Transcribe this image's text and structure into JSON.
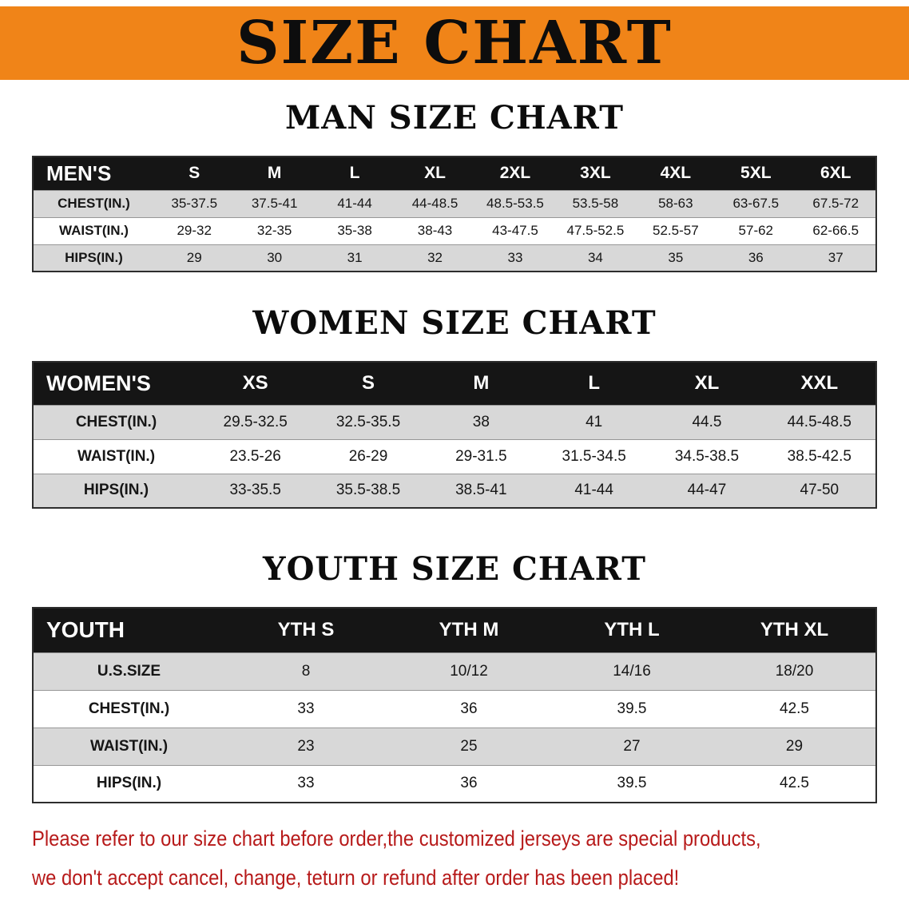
{
  "banner": {
    "title": "SIZE CHART"
  },
  "sections": [
    {
      "id": "men",
      "heading": "MAN SIZE CHART",
      "table": {
        "header": [
          "MEN'S",
          "S",
          "M",
          "L",
          "XL",
          "2XL",
          "3XL",
          "4XL",
          "5XL",
          "6XL"
        ],
        "rows": [
          [
            "CHEST(IN.)",
            "35-37.5",
            "37.5-41",
            "41-44",
            "44-48.5",
            "48.5-53.5",
            "53.5-58",
            "58-63",
            "63-67.5",
            "67.5-72"
          ],
          [
            "WAIST(IN.)",
            "29-32",
            "32-35",
            "35-38",
            "38-43",
            "43-47.5",
            "47.5-52.5",
            "52.5-57",
            "57-62",
            "62-66.5"
          ],
          [
            "HIPS(IN.)",
            "29",
            "30",
            "31",
            "32",
            "33",
            "34",
            "35",
            "36",
            "37"
          ]
        ]
      }
    },
    {
      "id": "women",
      "heading": "WOMEN SIZE CHART",
      "table": {
        "header": [
          "WOMEN'S",
          "XS",
          "S",
          "M",
          "L",
          "XL",
          "XXL"
        ],
        "rows": [
          [
            "CHEST(IN.)",
            "29.5-32.5",
            "32.5-35.5",
            "38",
            "41",
            "44.5",
            "44.5-48.5"
          ],
          [
            "WAIST(IN.)",
            "23.5-26",
            "26-29",
            "29-31.5",
            "31.5-34.5",
            "34.5-38.5",
            "38.5-42.5"
          ],
          [
            "HIPS(IN.)",
            "33-35.5",
            "35.5-38.5",
            "38.5-41",
            "41-44",
            "44-47",
            "47-50"
          ]
        ]
      }
    },
    {
      "id": "youth",
      "heading": "YOUTH SIZE CHART",
      "table": {
        "header": [
          "YOUTH",
          "YTH S",
          "YTH M",
          "YTH L",
          "YTH XL"
        ],
        "rows": [
          [
            "U.S.SIZE",
            "8",
            "10/12",
            "14/16",
            "18/20"
          ],
          [
            "CHEST(IN.)",
            "33",
            "36",
            "39.5",
            "42.5"
          ],
          [
            "WAIST(IN.)",
            "23",
            "25",
            "27",
            "29"
          ],
          [
            "HIPS(IN.)",
            "33",
            "36",
            "39.5",
            "42.5"
          ]
        ]
      }
    }
  ],
  "footer": {
    "lines": [
      "Please refer to our size chart before order,the customized jerseys are special products,",
      "we don't accept cancel, change, teturn or refund after order has been placed!"
    ]
  },
  "colors": {
    "banner_orange": "#f08418",
    "table_header_black": "#151515",
    "row_gray": "#d8d8d8",
    "note_red": "#b71a1a"
  }
}
